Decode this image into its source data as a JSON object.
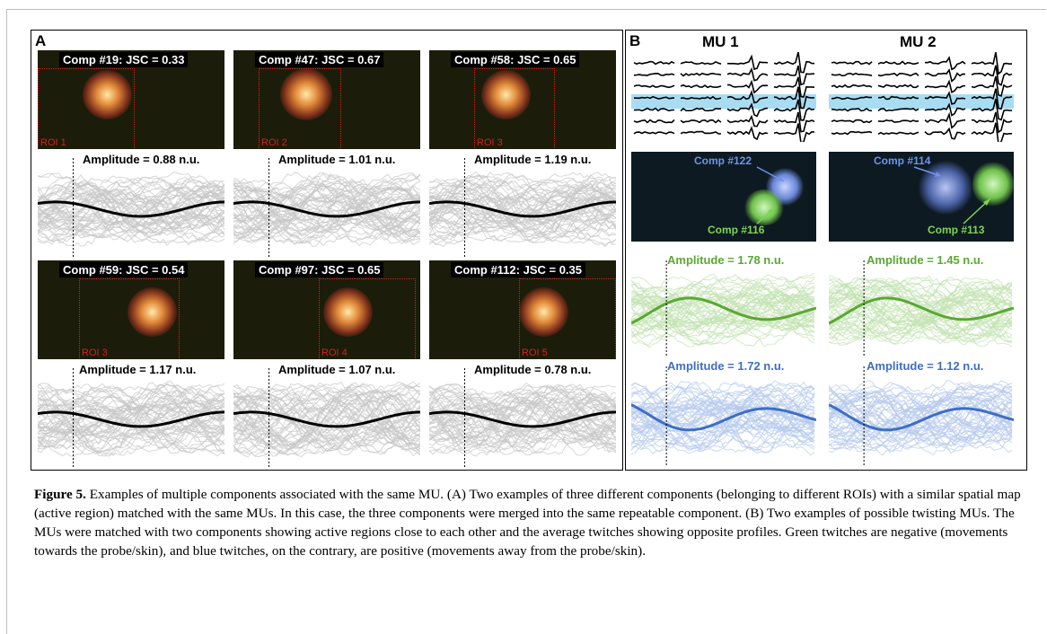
{
  "panel_a": {
    "letter": "A",
    "cells": [
      {
        "comp": "Comp #19: JSC = 0.33",
        "roi": "ROI 1",
        "amplitude": "Amplitude =  0.88 n.u."
      },
      {
        "comp": "Comp #47: JSC = 0.67",
        "roi": "ROI 2",
        "amplitude": "Amplitude =  1.01 n.u."
      },
      {
        "comp": "Comp #58: JSC = 0.65",
        "roi": "ROI 3",
        "amplitude": "Amplitude = 1.19 n.u."
      },
      {
        "comp": "Comp #59: JSC = 0.54",
        "roi": "ROI 3",
        "amplitude": "Amplitude =  1.17 n.u."
      },
      {
        "comp": "Comp #97: JSC = 0.65",
        "roi": "ROI 4",
        "amplitude": "Amplitude =  1.07 n.u."
      },
      {
        "comp": "Comp #112: JSC = 0.35",
        "roi": "ROI 5",
        "amplitude": "Amplitude = 0.78 n.u."
      }
    ]
  },
  "panel_b": {
    "letter": "B",
    "mus": [
      {
        "title": "MU 1",
        "comp_blue": "Comp #122",
        "comp_green": "Comp #116",
        "amp_green": "Amplitude = 1.78 n.u.",
        "amp_blue": "Amplitude = 1.72 n.u."
      },
      {
        "title": "MU 2",
        "comp_blue": "Comp #114",
        "comp_green": "Comp #113",
        "amp_green": "Amplitude =  1.45 n.u.",
        "amp_blue": "Amplitude = 1.12 n.u."
      }
    ]
  },
  "colors": {
    "roi": "#d42020",
    "trace_gray": "#c6c6c6",
    "trace_black": "#000000",
    "green_light": "#c2e3b0",
    "green_dark": "#5aa832",
    "blue_light": "#b5c9ec",
    "blue_dark": "#3d6fc4",
    "highlight": "#a8dcf2"
  },
  "caption": {
    "label": "Figure 5.",
    "text": " Examples of multiple components associated with the same MU. (A) Two examples of three different components (belonging to different ROIs) with a similar spatial map (active region) matched with the same MUs. In this case, the three components were merged into the same repeatable component. (B) Two examples of possible twisting MUs. The MUs were matched with two components showing active regions close to each other and the average twitches showing opposite profiles. Green twitches are negative (movements towards the probe/skin), and blue twitches, on the contrary, are positive (movements away from the probe/skin)."
  }
}
